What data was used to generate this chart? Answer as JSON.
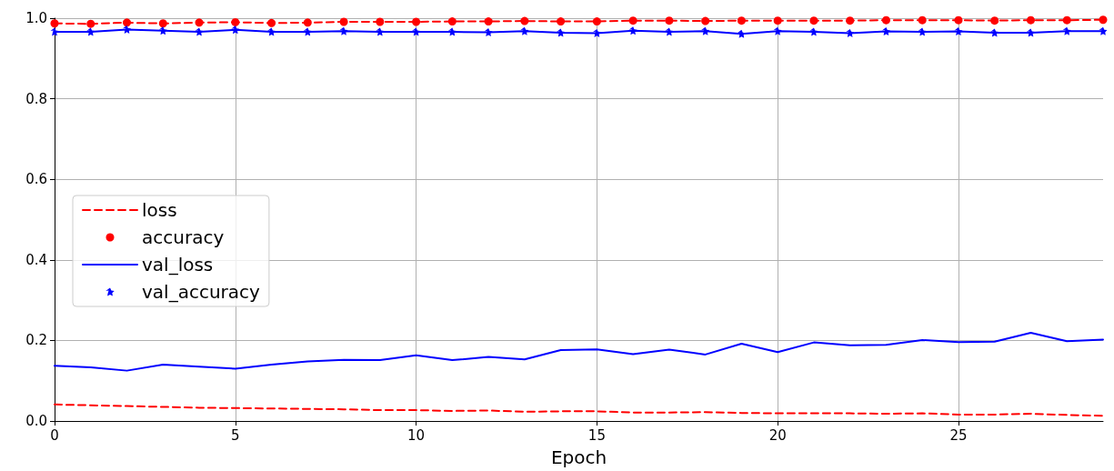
{
  "chart_data": {
    "type": "line",
    "xlabel": "Epoch",
    "x": [
      0,
      1,
      2,
      3,
      4,
      5,
      6,
      7,
      8,
      9,
      10,
      11,
      12,
      13,
      14,
      15,
      16,
      17,
      18,
      19,
      20,
      21,
      22,
      23,
      24,
      25,
      26,
      27,
      28,
      29
    ],
    "series": [
      {
        "name": "loss",
        "color": "#ff0000",
        "line_style": "dashed",
        "marker": "none",
        "values": [
          0.041,
          0.039,
          0.037,
          0.035,
          0.033,
          0.032,
          0.031,
          0.03,
          0.029,
          0.027,
          0.027,
          0.025,
          0.026,
          0.023,
          0.024,
          0.024,
          0.021,
          0.021,
          0.022,
          0.02,
          0.019,
          0.019,
          0.019,
          0.018,
          0.019,
          0.016,
          0.016,
          0.018,
          0.015,
          0.013
        ]
      },
      {
        "name": "accuracy",
        "color": "#ff0000",
        "line_style": "dashed",
        "marker": "circle",
        "values": [
          0.987,
          0.986,
          0.989,
          0.987,
          0.989,
          0.99,
          0.988,
          0.989,
          0.991,
          0.991,
          0.991,
          0.992,
          0.992,
          0.993,
          0.992,
          0.992,
          0.994,
          0.994,
          0.993,
          0.994,
          0.994,
          0.994,
          0.994,
          0.995,
          0.995,
          0.995,
          0.994,
          0.995,
          0.995,
          0.996
        ]
      },
      {
        "name": "val_loss",
        "color": "#0000ff",
        "line_style": "solid",
        "marker": "none",
        "values": [
          0.137,
          0.133,
          0.125,
          0.14,
          0.135,
          0.13,
          0.14,
          0.148,
          0.152,
          0.151,
          0.163,
          0.151,
          0.159,
          0.153,
          0.176,
          0.178,
          0.166,
          0.177,
          0.165,
          0.192,
          0.171,
          0.195,
          0.188,
          0.189,
          0.201,
          0.196,
          0.197,
          0.219,
          0.198,
          0.202
        ]
      },
      {
        "name": "val_accuracy",
        "color": "#0000ff",
        "line_style": "solid",
        "marker": "star",
        "values": [
          0.966,
          0.966,
          0.972,
          0.969,
          0.966,
          0.971,
          0.966,
          0.966,
          0.968,
          0.966,
          0.966,
          0.966,
          0.965,
          0.968,
          0.964,
          0.963,
          0.969,
          0.966,
          0.968,
          0.961,
          0.968,
          0.966,
          0.963,
          0.967,
          0.966,
          0.967,
          0.964,
          0.964,
          0.968,
          0.968
        ]
      }
    ],
    "xlim": [
      0,
      29
    ],
    "xticks": [
      0,
      5,
      10,
      15,
      20,
      25
    ],
    "ylim": [
      0,
      1
    ],
    "yticks": [
      {
        "value": 0,
        "label": "0.0"
      },
      {
        "value": 0.2,
        "label": "0.2"
      },
      {
        "value": 0.4,
        "label": "0.4"
      },
      {
        "value": 0.6,
        "label": "0.6"
      },
      {
        "value": 0.8,
        "label": "0.8"
      },
      {
        "value": 1,
        "label": "1.0"
      }
    ],
    "grid": true,
    "legend": "left"
  }
}
